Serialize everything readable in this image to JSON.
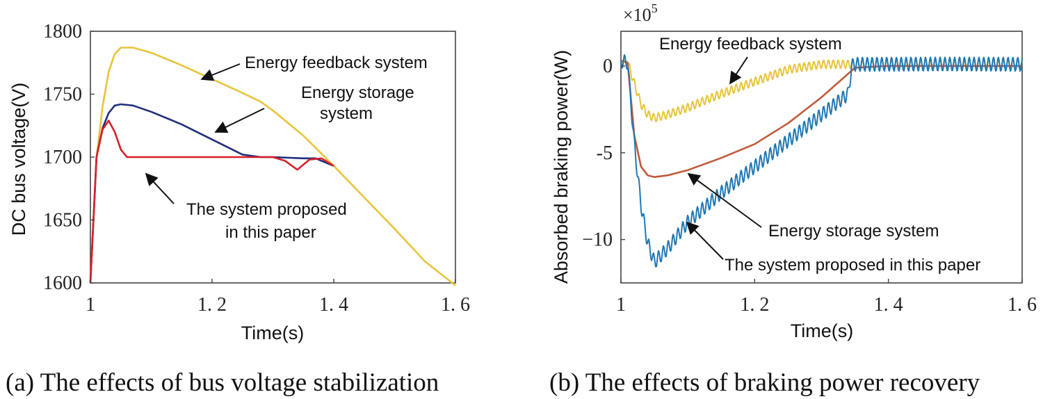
{
  "chart_data": [
    {
      "type": "line",
      "title": "",
      "caption": "(a) The effects of bus voltage stabilization",
      "xlabel": "Time(s)",
      "ylabel": "DC bus voltage(V)",
      "xlim": [
        1.0,
        1.6
      ],
      "ylim": [
        1600,
        1800
      ],
      "xticks": [
        1.0,
        1.2,
        1.4,
        1.6
      ],
      "xtick_labels": [
        "1",
        "1. 2",
        "1. 4",
        "1. 6"
      ],
      "yticks": [
        1600,
        1650,
        1700,
        1750,
        1800
      ],
      "ytick_labels": [
        "1600",
        "1650",
        "1700",
        "1750",
        "1800"
      ],
      "grid": false,
      "series": [
        {
          "name": "Energy feedback system",
          "color": "#e8c43a",
          "x": [
            1.0,
            1.01,
            1.02,
            1.03,
            1.04,
            1.05,
            1.07,
            1.1,
            1.15,
            1.2,
            1.25,
            1.28,
            1.3,
            1.35,
            1.4,
            1.45,
            1.5,
            1.55,
            1.6
          ],
          "y": [
            1600,
            1700,
            1740,
            1768,
            1782,
            1787,
            1787,
            1783,
            1773,
            1762,
            1751,
            1744,
            1737,
            1717,
            1693,
            1668,
            1643,
            1617,
            1598
          ]
        },
        {
          "name": "Energy storage system",
          "color": "#1f2f7a",
          "x": [
            1.0,
            1.01,
            1.02,
            1.03,
            1.04,
            1.05,
            1.07,
            1.1,
            1.15,
            1.2,
            1.25,
            1.28,
            1.3,
            1.35,
            1.37,
            1.4
          ],
          "y": [
            1600,
            1700,
            1723,
            1735,
            1741,
            1742,
            1741,
            1736,
            1726,
            1714,
            1702,
            1700,
            1700,
            1699,
            1699,
            1693
          ]
        },
        {
          "name": "The system proposed in this paper",
          "color": "#d8202a",
          "x": [
            1.0,
            1.01,
            1.02,
            1.03,
            1.04,
            1.05,
            1.06,
            1.1,
            1.2,
            1.3,
            1.32,
            1.34,
            1.36,
            1.38,
            1.4
          ],
          "y": [
            1600,
            1700,
            1722,
            1729,
            1720,
            1706,
            1700,
            1700,
            1700,
            1700,
            1697,
            1690,
            1698,
            1699,
            1693
          ]
        }
      ],
      "annotations": [
        "Energy feedback system",
        "Energy storage",
        "system",
        "The system proposed",
        "in this paper"
      ]
    },
    {
      "type": "line",
      "title": "",
      "caption": "(b) The effects of braking power recovery",
      "xlabel": "Time(s)",
      "ylabel": "Absorbed braking power(W)",
      "scale_label": "×10",
      "scale_exponent": "5",
      "xlim": [
        1.0,
        1.6
      ],
      "ylim": [
        -12.5,
        2.0
      ],
      "xticks": [
        1.0,
        1.2,
        1.4,
        1.6
      ],
      "xtick_labels": [
        "1",
        "1. 2",
        "1. 4",
        "1. 6"
      ],
      "yticks": [
        0,
        -5,
        -10
      ],
      "ytick_labels": [
        "0",
        "-5",
        "−10"
      ],
      "grid": false,
      "series": [
        {
          "name": "Energy feedback system",
          "color": "#e8c43a",
          "x": [
            1.0,
            1.01,
            1.02,
            1.03,
            1.04,
            1.05,
            1.07,
            1.1,
            1.15,
            1.2,
            1.25,
            1.3,
            1.35,
            1.4,
            1.5,
            1.6
          ],
          "y": [
            0.3,
            0.2,
            -1.0,
            -2.2,
            -2.8,
            -3.0,
            -2.8,
            -2.4,
            -1.6,
            -0.9,
            -0.2,
            0.1,
            0.1,
            0.1,
            0.1,
            0.1
          ]
        },
        {
          "name": "Energy storage system",
          "color": "#c05a3a",
          "x": [
            1.0,
            1.01,
            1.02,
            1.03,
            1.04,
            1.05,
            1.07,
            1.1,
            1.15,
            1.2,
            1.25,
            1.3,
            1.35,
            1.4,
            1.5,
            1.6
          ],
          "y": [
            0.3,
            0.2,
            -4.0,
            -5.8,
            -6.3,
            -6.4,
            -6.3,
            -6.0,
            -5.3,
            -4.5,
            -3.3,
            -1.8,
            -0.1,
            0.0,
            0.0,
            0.0
          ]
        },
        {
          "name": "The system proposed in this paper",
          "color": "#1f78b4",
          "x": [
            1.0,
            1.01,
            1.02,
            1.03,
            1.04,
            1.05,
            1.07,
            1.1,
            1.15,
            1.2,
            1.25,
            1.3,
            1.34,
            1.345,
            1.35,
            1.4,
            1.5,
            1.6
          ],
          "y": [
            0.3,
            0.2,
            -4.5,
            -8.0,
            -10.2,
            -11.3,
            -10.5,
            -9.0,
            -7.3,
            -5.8,
            -4.3,
            -2.8,
            -1.6,
            0.0,
            0.1,
            0.1,
            0.1,
            0.1
          ]
        }
      ],
      "annotations": [
        "Energy feedback system",
        "Energy storage system",
        "The system proposed in this paper"
      ]
    }
  ]
}
